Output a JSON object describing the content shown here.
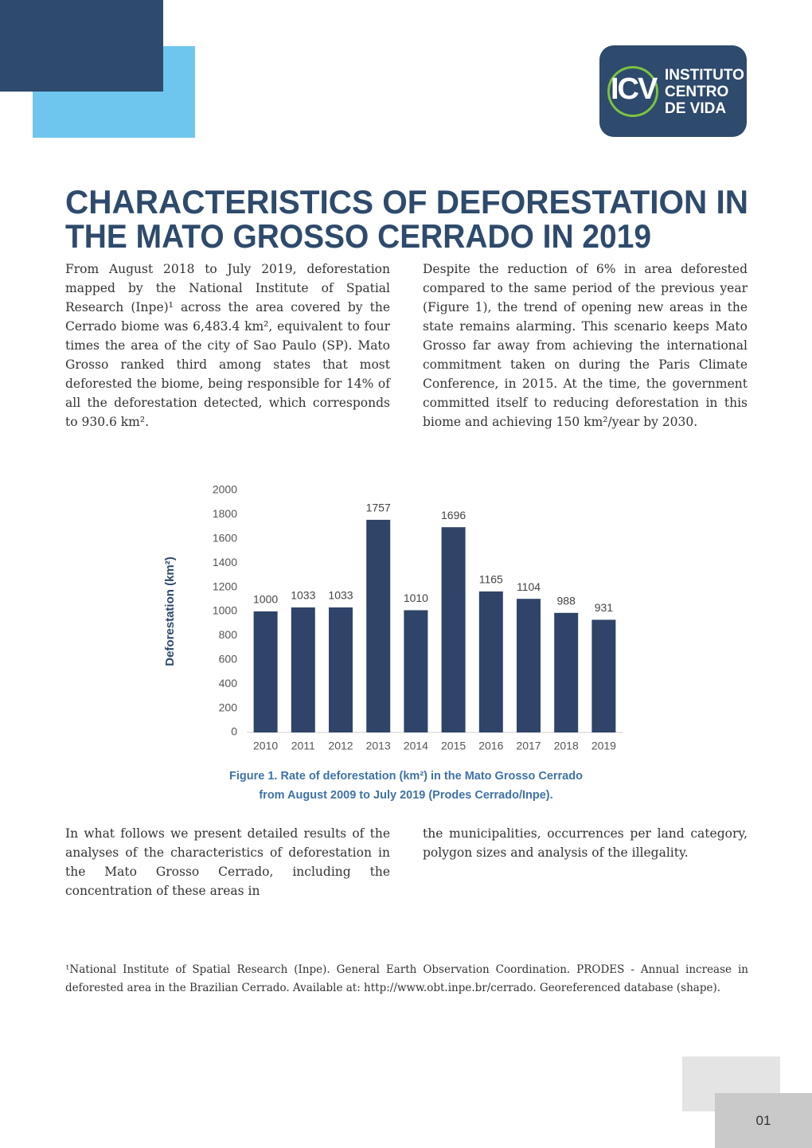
{
  "logo": {
    "mark": "ICV",
    "lines": [
      "INSTITUTO",
      "CENTRO",
      "DE VIDA"
    ]
  },
  "title_lines": [
    "CHARACTERISTICS OF DEFORESTATION IN",
    "THE MATO GROSSO CERRADO IN 2019"
  ],
  "intro": {
    "left": "From August 2018 to July 2019, deforestation mapped by the National Institute of Spatial Research (Inpe)¹ across the area covered by the Cerrado biome was 6,483.4 km², equivalent to four times the area of the city of Sao Paulo (SP). Mato Grosso ranked third among states that most deforested the biome, being responsible for 14% of all the deforestation detected, which corresponds to 930.6 km².",
    "right": "Despite the reduction of 6% in area deforested compared to the same period of the previous year (Figure 1), the trend of opening new areas in the state remains alarming. This scenario keeps Mato Grosso far away from achieving the international commitment taken on during the Paris Climate Conference, in 2015. At the time, the government committed itself to reducing deforestation in this biome and achieving 150 km²/year by 2030."
  },
  "chart_data": {
    "type": "bar",
    "y_label": "Deforestation (km²)",
    "categories": [
      "2010",
      "2011",
      "2012",
      "2013",
      "2014",
      "2015",
      "2016",
      "2017",
      "2018",
      "2019"
    ],
    "values": [
      1000,
      1033,
      1033,
      1757,
      1010,
      1696,
      1165,
      1104,
      988,
      931
    ],
    "color": "#2f4468",
    "ylim": [
      0,
      2000
    ],
    "yticks": [
      0,
      200,
      400,
      600,
      800,
      1000,
      1200,
      1400,
      1600,
      1800,
      2000
    ],
    "grid": false,
    "caption_lines": [
      "Figure 1. Rate of deforestation (km²) in the Mato Grosso Cerrado",
      "from August 2009 to July 2019 (Prodes Cerrado/Inpe)."
    ]
  },
  "body": {
    "left": "In what follows we present detailed results of the analyses of the characteristics of deforestation in the Mato Grosso Cerrado, including the concentration of these areas in",
    "right": "the municipalities, occurrences per land category, polygon sizes and analysis of the illegality."
  },
  "footnote": "¹National Institute of Spatial Research (Inpe). General Earth Observation Coordination. PRODES - Annual increase in deforested area in the Brazilian Cerrado. Available at: http://www.obt.inpe.br/cerrado. Georeferenced database (shape).",
  "page_number": "01"
}
